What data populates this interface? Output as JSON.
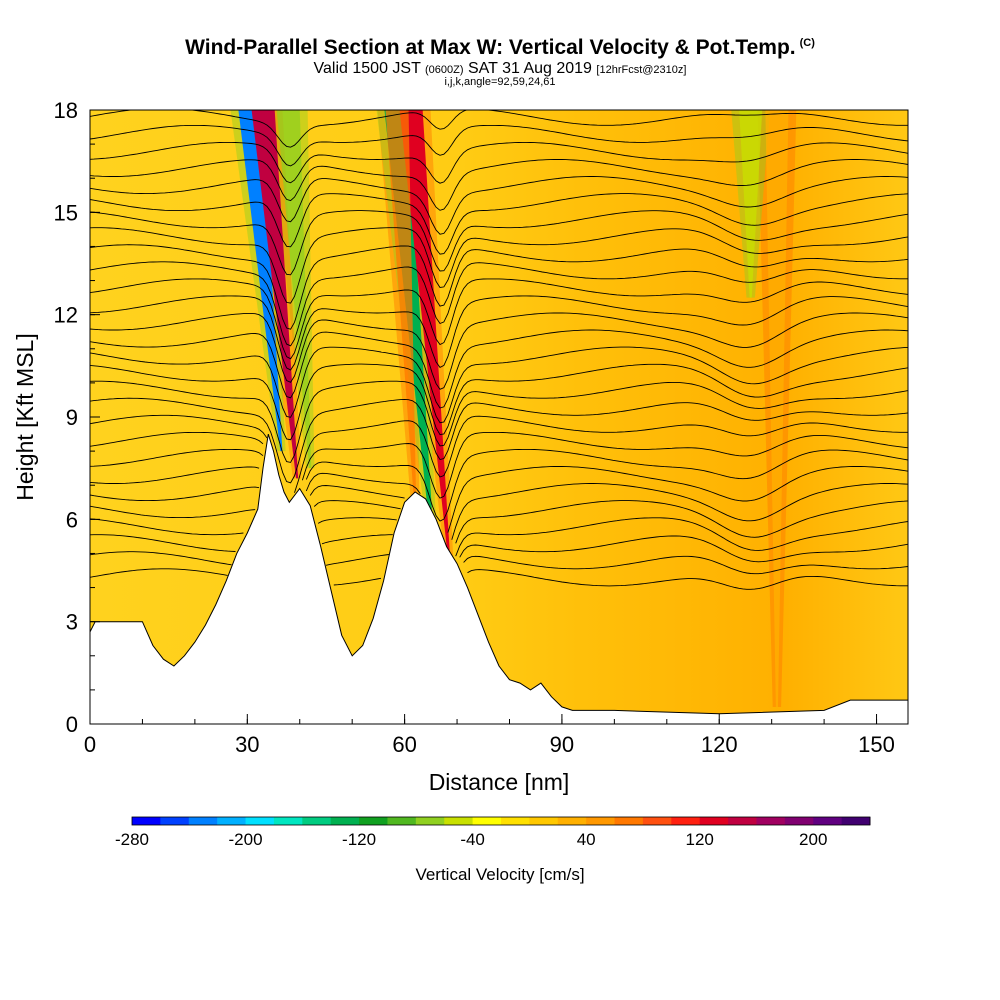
{
  "header": {
    "title": "Wind-Parallel Section at Max W: Vertical Velocity & Pot.Temp.",
    "title_mark": "(C)",
    "subtitle_valid": "Valid 1500 JST",
    "subtitle_z": "(0600Z)",
    "subtitle_date": "SAT 31 Aug 2019",
    "subtitle_fcst": "[12hrFcst@2310z]",
    "indices": "i,j,k,angle=92,59,24,61"
  },
  "chart_data": {
    "type": "heatmap",
    "xlabel": "Distance [nm]",
    "ylabel": "Height [Kft MSL]",
    "xlim": [
      0,
      156
    ],
    "ylim": [
      0,
      18
    ],
    "xticks": [
      0,
      30,
      60,
      90,
      120,
      150
    ],
    "yticks": [
      0,
      3,
      6,
      9,
      12,
      15,
      18
    ],
    "colorbar": {
      "label": "Vertical Velocity [cm/s]",
      "ticks": [
        -280,
        -200,
        -120,
        -40,
        40,
        120,
        200
      ],
      "range": [
        -280,
        240
      ],
      "colors": [
        "#0000ff",
        "#0040ff",
        "#0080ff",
        "#00b0ff",
        "#00e0ff",
        "#00e6c0",
        "#00cc80",
        "#00b050",
        "#10a020",
        "#50b820",
        "#90d020",
        "#c8e000",
        "#ffff00",
        "#ffe000",
        "#ffc800",
        "#ffb000",
        "#ff9800",
        "#ff7800",
        "#ff5010",
        "#ff2010",
        "#e00020",
        "#c00040",
        "#a00060",
        "#800070",
        "#600080",
        "#400070"
      ]
    },
    "terrain_kft": [
      [
        0,
        2.7
      ],
      [
        1,
        3.0
      ],
      [
        10,
        3.0
      ],
      [
        12,
        2.3
      ],
      [
        14,
        1.9
      ],
      [
        16,
        1.7
      ],
      [
        18,
        2.0
      ],
      [
        20,
        2.4
      ],
      [
        22,
        2.9
      ],
      [
        24,
        3.5
      ],
      [
        26,
        4.2
      ],
      [
        28,
        5.0
      ],
      [
        30,
        5.6
      ],
      [
        32,
        6.3
      ],
      [
        33,
        7.5
      ],
      [
        34,
        8.5
      ],
      [
        35,
        8.0
      ],
      [
        36,
        7.3
      ],
      [
        37,
        6.8
      ],
      [
        38,
        6.5
      ],
      [
        40,
        6.9
      ],
      [
        42,
        6.4
      ],
      [
        44,
        5.2
      ],
      [
        46,
        3.9
      ],
      [
        48,
        2.6
      ],
      [
        50,
        2.0
      ],
      [
        52,
        2.3
      ],
      [
        54,
        3.1
      ],
      [
        56,
        4.2
      ],
      [
        58,
        5.6
      ],
      [
        60,
        6.5
      ],
      [
        62,
        6.8
      ],
      [
        64,
        6.6
      ],
      [
        66,
        6.0
      ],
      [
        68,
        5.2
      ],
      [
        70,
        4.7
      ],
      [
        72,
        4.0
      ],
      [
        74,
        3.2
      ],
      [
        76,
        2.4
      ],
      [
        78,
        1.7
      ],
      [
        80,
        1.3
      ],
      [
        82,
        1.2
      ],
      [
        84,
        1.0
      ],
      [
        86,
        1.2
      ],
      [
        88,
        0.8
      ],
      [
        90,
        0.5
      ],
      [
        92,
        0.4
      ],
      [
        100,
        0.4
      ],
      [
        120,
        0.3
      ],
      [
        140,
        0.4
      ],
      [
        145,
        0.7
      ],
      [
        156,
        0.7
      ]
    ],
    "vertical_velocity_features": [
      {
        "x": 36.5,
        "top": 18,
        "bottom": 8.0,
        "tilt_nm_per_kft": 0.6,
        "value": -230
      },
      {
        "x": 39.5,
        "top": 18,
        "bottom": 7.2,
        "tilt_nm_per_kft": 0.6,
        "value": 140
      },
      {
        "x": 42.0,
        "top": 18,
        "bottom": 7.5,
        "tilt_nm_per_kft": 0.4,
        "value": -80
      },
      {
        "x": 65.5,
        "top": 18,
        "bottom": 5.0,
        "tilt_nm_per_kft": 0.55,
        "value": -140
      },
      {
        "x": 68.5,
        "top": 18,
        "bottom": 4.8,
        "tilt_nm_per_kft": 0.55,
        "value": 130
      },
      {
        "x": 62.0,
        "top": 18,
        "bottom": 6.5,
        "tilt_nm_per_kft": 0.3,
        "value": 70
      },
      {
        "x": 126.0,
        "top": 18,
        "bottom": 12.5,
        "tilt_nm_per_kft": 0.0,
        "value": -50
      },
      {
        "x": 131.0,
        "top": 18,
        "bottom": 0.5,
        "tilt_nm_per_kft": 0.0,
        "value": 30
      }
    ],
    "potential_temperature_contours_kft": [
      4.3,
      4.8,
      5.3,
      5.8,
      6.3,
      6.8,
      7.3,
      7.8,
      8.3,
      8.8,
      9.3,
      9.8,
      10.3,
      10.8,
      11.3,
      11.8,
      12.3,
      12.8,
      13.3,
      13.8,
      14.3,
      14.8,
      15.3,
      15.8,
      16.3,
      16.8,
      17.3,
      17.8
    ]
  }
}
